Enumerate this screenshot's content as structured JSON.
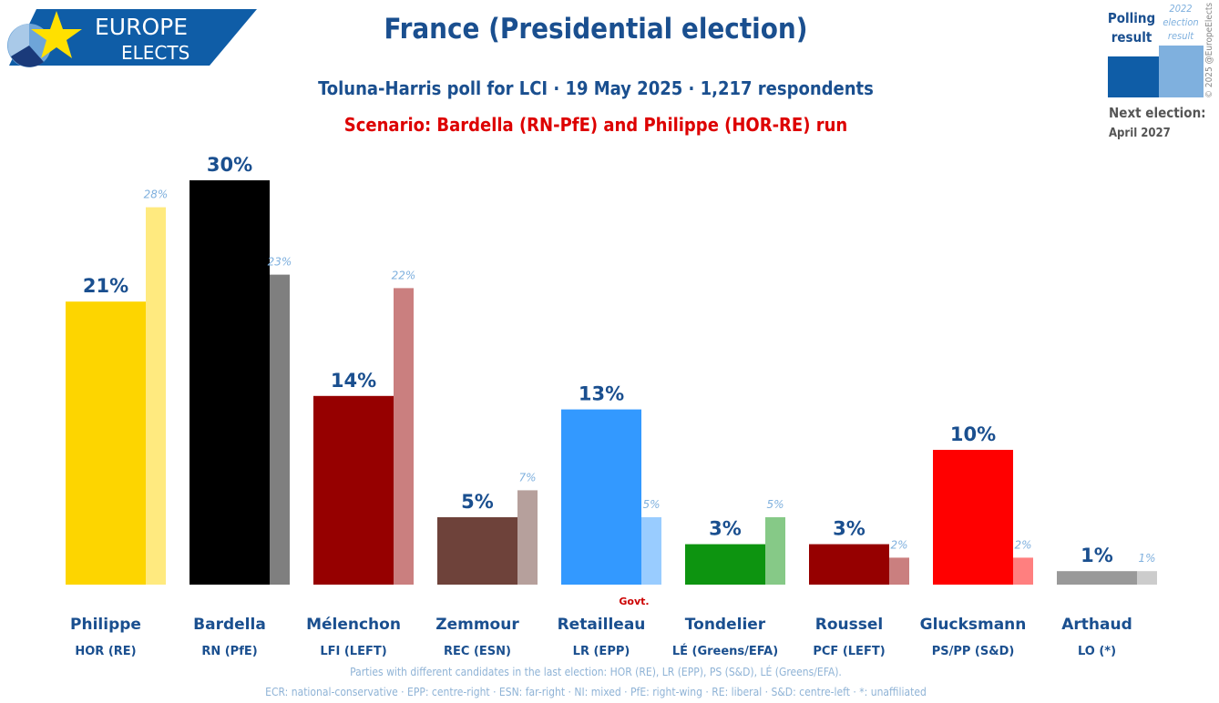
{
  "header": {
    "logo_line1": "EUROPE",
    "logo_line2": "ELECTS",
    "title": "France (Presidential election)",
    "subtitle": "Toluna-Harris poll for LCI · 19 May 2025 · 1,217 respondents",
    "scenario": "Scenario: Bardella (RN-PfE) and Philippe (HOR-RE) run"
  },
  "legend": {
    "polling_line1": "Polling",
    "polling_line2": "result",
    "prev_line1": "2022",
    "prev_line2": "election",
    "prev_line3": "result",
    "next_label": "Next election:",
    "next_date": "April 2027",
    "copyright": "© 2025 @EuropeElects"
  },
  "chart_data": {
    "type": "bar",
    "ylim": [
      0,
      30
    ],
    "categories": [
      "Philippe",
      "Bardella",
      "Mélenchon",
      "Zemmour",
      "Retailleau",
      "Tondelier",
      "Roussel",
      "Glucksmann",
      "Arthaud"
    ],
    "parties": [
      "HOR (RE)",
      "RN (PfE)",
      "LFI (LEFT)",
      "REC (ESN)",
      "LR (EPP)",
      "LÉ (Greens/EFA)",
      "PCF (LEFT)",
      "PS/PP (S&D)",
      "LO (*)"
    ],
    "series": [
      {
        "name": "Polling result",
        "values": [
          21,
          30,
          14,
          5,
          13,
          3,
          3,
          10,
          1
        ],
        "labels": [
          "21%",
          "30%",
          "14%",
          "5%",
          "13%",
          "3%",
          "3%",
          "10%",
          "1%"
        ]
      },
      {
        "name": "2022 election result",
        "values": [
          28,
          23,
          22,
          7,
          5,
          5,
          2,
          2,
          1
        ],
        "labels": [
          "28%",
          "23%",
          "22%",
          "7%",
          "5%",
          "5%",
          "2%",
          "2%",
          "1%"
        ]
      }
    ],
    "colors": [
      "#fdd500",
      "#000000",
      "#960000",
      "#6e423a",
      "#3399ff",
      "#0d9410",
      "#960000",
      "#ff0000",
      "#999999"
    ],
    "prev_colors": [
      "#ffea7f",
      "#7f7f7f",
      "#ca7f7f",
      "#b6a09c",
      "#99ccff",
      "#86c987",
      "#ca7f7f",
      "#ff7f7f",
      "#cccccc"
    ],
    "govt_label": "Govt.",
    "govt_index": 4
  },
  "footnotes": {
    "line1": "Parties with different candidates in the last election: HOR (RE), LR (EPP), PS (S&D), LÉ (Greens/EFA).",
    "line2": "ECR: national-conservative · EPP: centre-right · ESN: far-right · NI: mixed · PfE: right-wing · RE: liberal · S&D: centre-left · *: unaffiliated"
  }
}
